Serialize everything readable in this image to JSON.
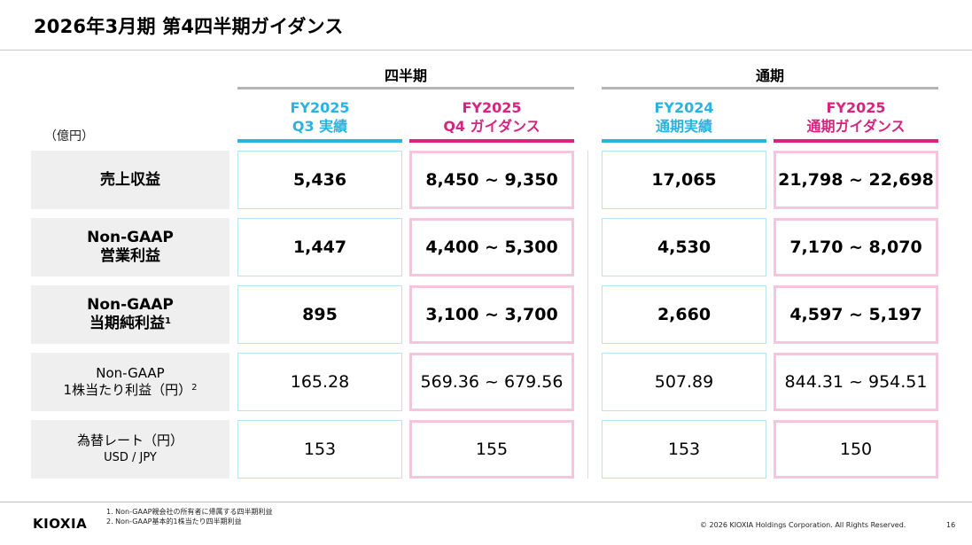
{
  "title": "2026年3月期 第4四半期ガイダンス",
  "unit_label": "（億円）",
  "groups": {
    "quarterly": "四半期",
    "annual": "通期"
  },
  "columns": [
    {
      "line1": "FY2025",
      "line2": "Q3 実績",
      "accent": "#29b3e3"
    },
    {
      "line1": "FY2025",
      "line2": "Q4 ガイダンス",
      "accent": "#d6247f"
    },
    {
      "line1": "FY2024",
      "line2": "通期実績",
      "accent": "#29b3e3"
    },
    {
      "line1": "FY2025",
      "line2": "通期ガイダンス",
      "accent": "#d6247f"
    }
  ],
  "rows": [
    {
      "label1": "売上収益",
      "label2": "",
      "note": "",
      "values": [
        "5,436",
        "8,450 ~ 9,350",
        "17,065",
        "21,798 ~ 22,698"
      ]
    },
    {
      "label1": "Non-GAAP",
      "label2": "営業利益",
      "note": "",
      "values": [
        "1,447",
        "4,400 ~ 5,300",
        "4,530",
        "7,170 ~ 8,070"
      ]
    },
    {
      "label1": "Non-GAAP",
      "label2": "当期純利益",
      "note": "1",
      "values": [
        "895",
        "3,100 ~ 3,700",
        "2,660",
        "4,597 ~ 5,197"
      ]
    },
    {
      "label1": "Non-GAAP",
      "label2": "1株当たり利益（円）",
      "note": "2",
      "values": [
        "165.28",
        "569.36 ~ 679.56",
        "507.89",
        "844.31 ~ 954.51"
      ]
    },
    {
      "label1": "為替レート（円）",
      "label2": "USD / JPY",
      "note": "",
      "values": [
        "153",
        "155",
        "153",
        "150"
      ]
    }
  ],
  "footer": {
    "logo": "KIOXIA",
    "footnotes": [
      "1. Non-GAAP親会社の所有者に帰属する四半期利益",
      "2. Non-GAAP基本的1株当たり四半期利益"
    ],
    "copyright": "© 2026 KIOXIA Holdings Corporation. All Rights Reserved.",
    "page_number": "16"
  }
}
